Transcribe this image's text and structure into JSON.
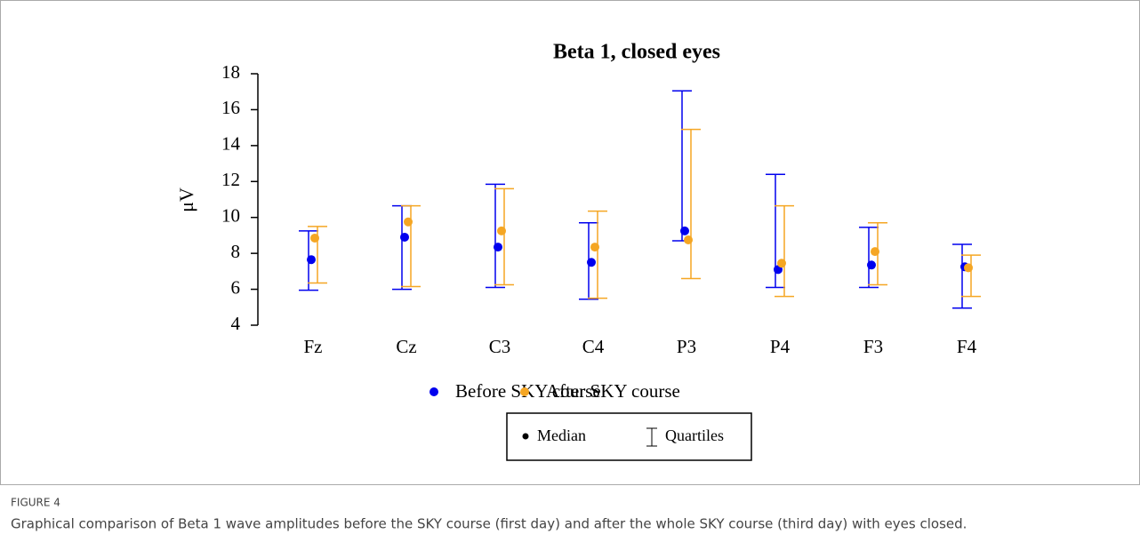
{
  "figure_label": "FIGURE 4",
  "caption": "Graphical comparison of Beta 1 wave amplitudes before the SKY course (first day) and after the whole SKY course (third day) with eyes closed.",
  "chart_data": {
    "type": "median_quartiles",
    "title": "Beta 1, closed eyes",
    "y_label": "μV",
    "categories": [
      "Fz",
      "Cz",
      "C3",
      "C4",
      "P3",
      "P4",
      "F3",
      "F4"
    ],
    "series": [
      {
        "name": "Before SKY course",
        "color": "#0000ee",
        "values": [
          7.65,
          8.9,
          8.35,
          7.5,
          9.25,
          7.1,
          7.35,
          7.25
        ],
        "q1": [
          5.95,
          6.0,
          6.1,
          5.45,
          8.7,
          6.1,
          6.1,
          4.95
        ],
        "q3": [
          9.25,
          10.65,
          11.85,
          9.7,
          17.05,
          12.4,
          9.45,
          8.5
        ]
      },
      {
        "name": "After SKY course",
        "color": "#f5a623",
        "values": [
          8.85,
          9.75,
          9.25,
          8.35,
          8.75,
          7.45,
          8.1,
          7.2
        ],
        "q1": [
          6.35,
          6.15,
          6.25,
          5.5,
          6.6,
          5.6,
          6.25,
          5.6
        ],
        "q3": [
          9.5,
          10.65,
          11.6,
          10.35,
          14.9,
          10.65,
          9.7,
          7.9
        ]
      }
    ],
    "key": {
      "median": "Median",
      "quartiles": "Quartiles"
    },
    "ylim": [
      4,
      18
    ],
    "yticks": [
      4,
      6,
      8,
      10,
      12,
      14,
      16,
      18
    ]
  }
}
